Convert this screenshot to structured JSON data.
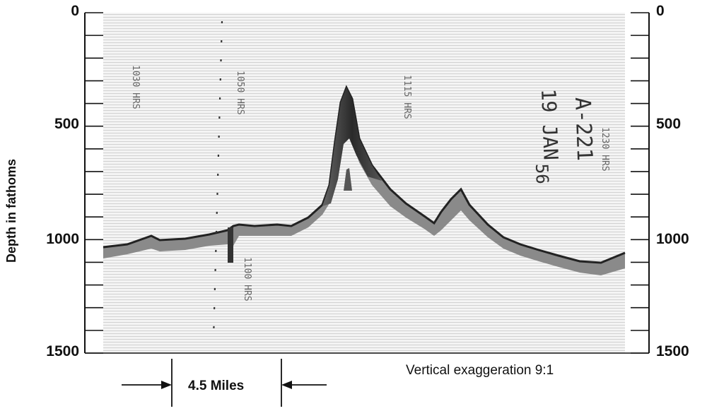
{
  "axis_label": "Depth in fathoms",
  "left_ticks": [
    "0",
    "500",
    "1000",
    "1500"
  ],
  "right_ticks": [
    "0",
    "500",
    "1000",
    "1500"
  ],
  "depth_range": [
    0,
    1500
  ],
  "scale_bar_label": "4.5 Miles",
  "exaggeration_label": "Vertical exaggeration 9:1",
  "annotations": {
    "station": "A-221",
    "date_line1": "19 JAN",
    "date_line2": "56",
    "time_1": "1030 HRS",
    "time_2": "1050 HRS",
    "time_3": "1115 HRS",
    "time_4": "1230 HRS",
    "time_5": "1100 HRS"
  }
}
